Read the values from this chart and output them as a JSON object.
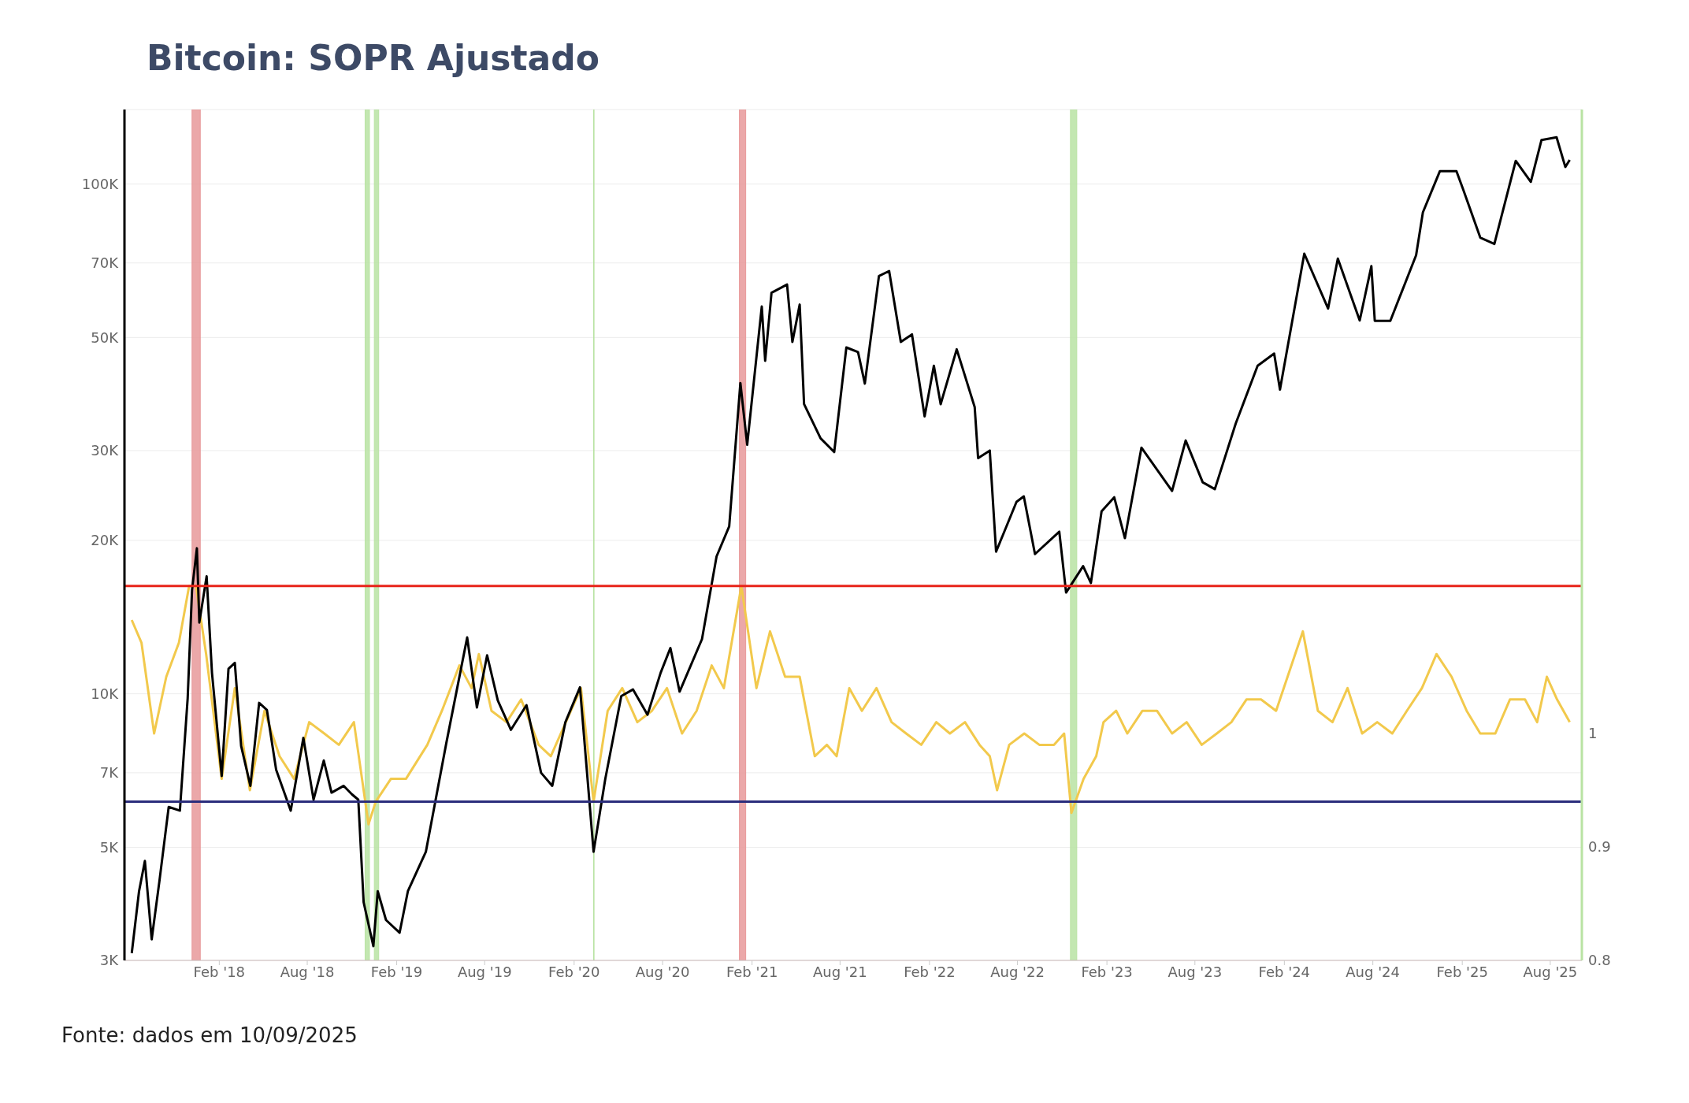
{
  "chart_data": {
    "type": "line",
    "title": "Bitcoin: SOPR Ajustado",
    "annotations": [
      "Fonte: dados em 10/09/2025"
    ],
    "series": [
      {
        "type": "line",
        "color": "#000000",
        "axis": "y",
        "x": [
          "2017-08-05",
          "2017-08-20",
          "2017-09-01",
          "2017-09-15",
          "2017-10-01",
          "2017-10-20",
          "2017-11-12",
          "2017-11-28",
          "2017-12-07",
          "2017-12-17",
          "2017-12-22",
          "2018-01-06",
          "2018-01-17",
          "2018-02-06",
          "2018-02-20",
          "2018-03-05",
          "2018-03-18",
          "2018-04-06",
          "2018-04-24",
          "2018-05-10",
          "2018-05-29",
          "2018-06-28",
          "2018-07-24",
          "2018-08-14",
          "2018-09-04",
          "2018-09-20",
          "2018-10-15",
          "2018-11-01",
          "2018-11-14",
          "2018-11-25",
          "2018-12-15",
          "2018-12-24",
          "2019-01-10",
          "2019-02-07",
          "2019-02-24",
          "2019-04-02",
          "2019-05-14",
          "2019-06-26",
          "2019-07-16",
          "2019-08-06",
          "2019-08-28",
          "2019-09-24",
          "2019-10-26",
          "2019-11-25",
          "2019-12-18",
          "2020-01-14",
          "2020-02-13",
          "2020-03-12",
          "2020-04-05",
          "2020-05-08",
          "2020-06-01",
          "2020-07-01",
          "2020-07-28",
          "2020-08-17",
          "2020-09-05",
          "2020-10-21",
          "2020-11-20",
          "2020-12-16",
          "2021-01-08",
          "2021-01-22",
          "2021-02-21",
          "2021-02-28",
          "2021-03-13",
          "2021-04-14",
          "2021-04-25",
          "2021-05-10",
          "2021-05-19",
          "2021-06-22",
          "2021-07-20",
          "2021-08-14",
          "2021-09-07",
          "2021-09-21",
          "2021-10-20",
          "2021-11-10",
          "2021-12-04",
          "2021-12-27",
          "2022-01-22",
          "2022-02-10",
          "2022-02-24",
          "2022-03-29",
          "2022-05-05",
          "2022-05-12",
          "2022-06-05",
          "2022-06-18",
          "2022-07-30",
          "2022-08-14",
          "2022-09-06",
          "2022-10-26",
          "2022-11-09",
          "2022-12-14",
          "2022-12-30",
          "2023-01-21",
          "2023-02-16",
          "2023-03-10",
          "2023-04-13",
          "2023-06-15",
          "2023-07-13",
          "2023-08-17",
          "2023-09-11",
          "2023-10-24",
          "2023-12-08",
          "2024-01-11",
          "2024-01-23",
          "2024-03-13",
          "2024-05-01",
          "2024-05-21",
          "2024-07-05",
          "2024-07-29",
          "2024-08-05",
          "2024-09-06",
          "2024-10-29",
          "2024-11-12",
          "2024-12-17",
          "2025-01-20",
          "2025-02-03",
          "2025-03-10",
          "2025-04-08",
          "2025-05-22",
          "2025-06-22",
          "2025-07-14",
          "2025-08-14",
          "2025-09-01",
          "2025-09-10"
        ],
        "values": [
          3100,
          4100,
          4700,
          3300,
          4300,
          6000,
          5900,
          9800,
          16000,
          19300,
          13800,
          17000,
          11000,
          6900,
          11200,
          11500,
          7900,
          6600,
          9600,
          9300,
          7100,
          5900,
          8200,
          6200,
          7400,
          6400,
          6600,
          6350,
          6200,
          3900,
          3200,
          4100,
          3600,
          3400,
          4100,
          4900,
          8000,
          12900,
          9400,
          11900,
          9700,
          8500,
          9500,
          7000,
          6600,
          8800,
          10300,
          4900,
          6800,
          9900,
          10200,
          9100,
          11000,
          12300,
          10100,
          12800,
          18600,
          21300,
          40700,
          30800,
          57500,
          45000,
          61200,
          63500,
          49000,
          58000,
          37000,
          31700,
          29800,
          47800,
          46800,
          40600,
          66000,
          67500,
          49000,
          50700,
          35000,
          44000,
          37000,
          47400,
          36500,
          29000,
          30000,
          19000,
          23800,
          24400,
          18800,
          20800,
          15800,
          17800,
          16500,
          22800,
          24300,
          20200,
          30400,
          25000,
          31400,
          26000,
          25200,
          33900,
          44000,
          46500,
          39500,
          73000,
          57000,
          71400,
          54000,
          69000,
          53900,
          53900,
          72500,
          88000,
          106000,
          106000,
          97500,
          78500,
          76300,
          111000,
          101000,
          122000,
          123500,
          108000,
          111500
        ]
      },
      {
        "type": "line",
        "color": "#f2c94c",
        "axis": "y2",
        "x": [
          "2017-08-05",
          "2017-08-25",
          "2017-09-20",
          "2017-10-15",
          "2017-11-10",
          "2017-12-01",
          "2017-12-15",
          "2018-01-05",
          "2018-02-06",
          "2018-03-05",
          "2018-04-05",
          "2018-05-05",
          "2018-06-05",
          "2018-07-05",
          "2018-08-05",
          "2018-09-05",
          "2018-10-05",
          "2018-11-05",
          "2018-12-05",
          "2018-12-20",
          "2019-01-20",
          "2019-02-20",
          "2019-04-05",
          "2019-05-05",
          "2019-06-10",
          "2019-07-05",
          "2019-07-20",
          "2019-08-15",
          "2019-09-15",
          "2019-10-15",
          "2019-11-20",
          "2019-12-15",
          "2020-01-15",
          "2020-02-15",
          "2020-03-12",
          "2020-04-10",
          "2020-05-10",
          "2020-06-10",
          "2020-07-10",
          "2020-08-10",
          "2020-09-10",
          "2020-10-10",
          "2020-11-10",
          "2020-12-05",
          "2021-01-10",
          "2021-02-10",
          "2021-03-10",
          "2021-04-10",
          "2021-05-10",
          "2021-06-10",
          "2021-07-05",
          "2021-07-25",
          "2021-08-20",
          "2021-09-15",
          "2021-10-15",
          "2021-11-15",
          "2021-12-15",
          "2022-01-15",
          "2022-02-15",
          "2022-03-15",
          "2022-04-15",
          "2022-05-15",
          "2022-06-05",
          "2022-06-20",
          "2022-07-15",
          "2022-08-15",
          "2022-09-15",
          "2022-10-15",
          "2022-11-05",
          "2022-11-20",
          "2022-12-15",
          "2023-01-10",
          "2023-01-25",
          "2023-02-20",
          "2023-03-15",
          "2023-04-15",
          "2023-05-15",
          "2023-06-15",
          "2023-07-15",
          "2023-08-15",
          "2023-09-15",
          "2023-10-15",
          "2023-11-15",
          "2023-12-15",
          "2024-01-15",
          "2024-03-10",
          "2024-04-10",
          "2024-05-10",
          "2024-06-10",
          "2024-07-10",
          "2024-08-10",
          "2024-09-10",
          "2024-10-10",
          "2024-11-10",
          "2024-12-10",
          "2025-01-10",
          "2025-02-10",
          "2025-03-10",
          "2025-04-10",
          "2025-05-10",
          "2025-06-10",
          "2025-07-05",
          "2025-07-25",
          "2025-08-15",
          "2025-09-10"
        ],
        "values": [
          1.1,
          1.08,
          1.0,
          1.05,
          1.08,
          1.13,
          1.13,
          1.07,
          0.96,
          1.04,
          0.95,
          1.02,
          0.98,
          0.96,
          1.01,
          1.0,
          0.99,
          1.01,
          0.92,
          0.94,
          0.96,
          0.96,
          0.99,
          1.02,
          1.06,
          1.04,
          1.07,
          1.02,
          1.01,
          1.03,
          0.99,
          0.98,
          1.01,
          1.04,
          0.94,
          1.02,
          1.04,
          1.01,
          1.02,
          1.04,
          1.0,
          1.02,
          1.06,
          1.04,
          1.13,
          1.04,
          1.09,
          1.05,
          1.05,
          0.98,
          0.99,
          0.98,
          1.04,
          1.02,
          1.04,
          1.01,
          1.0,
          0.99,
          1.01,
          1.0,
          1.01,
          0.99,
          0.98,
          0.95,
          0.99,
          1.0,
          0.99,
          0.99,
          1.0,
          0.93,
          0.96,
          0.98,
          1.01,
          1.02,
          1.0,
          1.02,
          1.02,
          1.0,
          1.01,
          0.99,
          1.0,
          1.01,
          1.03,
          1.03,
          1.02,
          1.09,
          1.02,
          1.01,
          1.04,
          1.0,
          1.01,
          1.0,
          1.02,
          1.04,
          1.07,
          1.05,
          1.02,
          1.0,
          1.0,
          1.03,
          1.03,
          1.01,
          1.05,
          1.03,
          1.01
        ]
      }
    ],
    "xlim": [
      "2017-07-21",
      "2025-10-05"
    ],
    "xticks": [
      {
        "value": "2018-02-01",
        "label": "Feb '18"
      },
      {
        "value": "2018-08-01",
        "label": "Aug '18"
      },
      {
        "value": "2019-02-01",
        "label": "Feb '19"
      },
      {
        "value": "2019-08-01",
        "label": "Aug '19"
      },
      {
        "value": "2020-02-01",
        "label": "Feb '20"
      },
      {
        "value": "2020-08-01",
        "label": "Aug '20"
      },
      {
        "value": "2021-02-01",
        "label": "Feb '21"
      },
      {
        "value": "2021-08-01",
        "label": "Aug '21"
      },
      {
        "value": "2022-02-01",
        "label": "Feb '22"
      },
      {
        "value": "2022-08-01",
        "label": "Aug '22"
      },
      {
        "value": "2023-02-01",
        "label": "Feb '23"
      },
      {
        "value": "2023-08-01",
        "label": "Aug '23"
      },
      {
        "value": "2024-02-01",
        "label": "Feb '24"
      },
      {
        "value": "2024-08-01",
        "label": "Aug '24"
      },
      {
        "value": "2025-02-01",
        "label": "Feb '25"
      },
      {
        "value": "2025-08-01",
        "label": "Aug '25"
      }
    ],
    "ylim": [
      3000,
      140000
    ],
    "yticks": [
      {
        "value": 3000,
        "label": "3K"
      },
      {
        "value": 5000,
        "label": "5K"
      },
      {
        "value": 7000,
        "label": "7K"
      },
      {
        "value": 10000,
        "label": "10K"
      },
      {
        "value": 20000,
        "label": "20K"
      },
      {
        "value": 30000,
        "label": "30K"
      },
      {
        "value": 50000,
        "label": "50K"
      },
      {
        "value": 70000,
        "label": "70K"
      },
      {
        "value": 100000,
        "label": "100K"
      }
    ],
    "y2lim": [
      0.8,
      1.55
    ],
    "y2ticks": [
      0.8,
      0.9,
      1
    ],
    "log": "y",
    "grid": "y",
    "ref_lines": [
      {
        "axis": "y2",
        "value": 1.13,
        "color": "#e8241a"
      },
      {
        "axis": "y2",
        "value": 0.94,
        "color": "#2b2d7c"
      }
    ],
    "bands": [
      {
        "axis": "x",
        "from": "2017-12-07",
        "to": "2017-12-24",
        "color": "#e8999a"
      },
      {
        "axis": "x",
        "from": "2018-11-28",
        "to": "2018-12-07",
        "color": "#b9e3a3"
      },
      {
        "axis": "x",
        "from": "2018-12-17",
        "to": "2018-12-26",
        "color": "#b9e3a3"
      },
      {
        "axis": "x",
        "from": "2020-03-12",
        "to": "2020-03-13",
        "color": "#b9e3a3"
      },
      {
        "axis": "x",
        "from": "2021-01-06",
        "to": "2021-01-19",
        "color": "#e8999a"
      },
      {
        "axis": "x",
        "from": "2022-11-18",
        "to": "2022-12-01",
        "color": "#b9e3a3"
      }
    ]
  }
}
